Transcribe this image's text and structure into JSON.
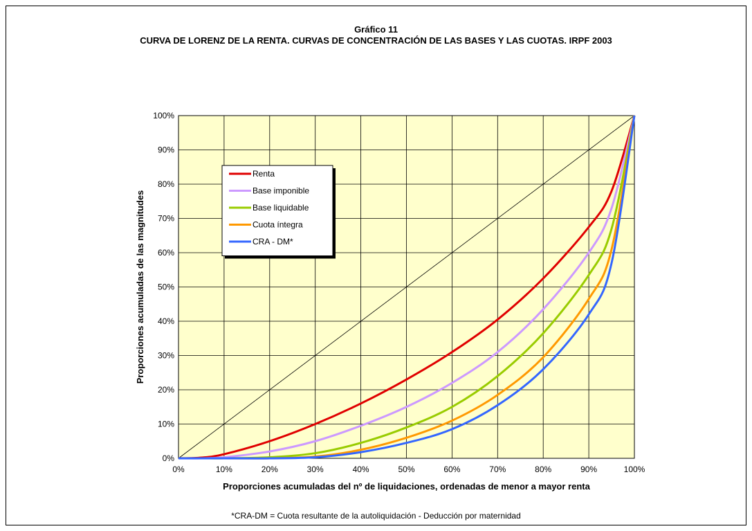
{
  "chart_data": {
    "type": "line",
    "title": "Gráfico 11",
    "subtitle": "CURVA DE LORENZ DE LA RENTA. CURVAS DE CONCENTRACIÓN DE LAS BASES Y LAS CUOTAS. IRPF 2003",
    "xlabel": "Proporciones acumuladas del nº de liquidaciones, ordenadas de menor a mayor renta",
    "ylabel": "Proporciones acumuladas de las magnitudes",
    "xlim": [
      0,
      100
    ],
    "ylim": [
      0,
      100
    ],
    "x_ticks": [
      "0%",
      "10%",
      "20%",
      "30%",
      "40%",
      "50%",
      "60%",
      "70%",
      "80%",
      "90%",
      "100%"
    ],
    "y_ticks": [
      "0%",
      "10%",
      "20%",
      "30%",
      "40%",
      "50%",
      "60%",
      "70%",
      "80%",
      "90%",
      "100%"
    ],
    "grid": true,
    "plot_background": "#FFFFCC",
    "legend_position": "top-left",
    "footnote": "*CRA-DM = Cuota resultante de la autoliquidación - Deducción por maternidad",
    "x": [
      0,
      5,
      10,
      20,
      30,
      40,
      50,
      60,
      70,
      80,
      90,
      95,
      100
    ],
    "series": [
      {
        "name": "Renta",
        "color": "#E00000",
        "values": [
          0,
          0.2,
          1.2,
          5,
          10,
          16,
          23,
          31,
          40.5,
          52.5,
          67.5,
          78,
          100
        ]
      },
      {
        "name": "Base imponible",
        "color": "#CC99FF",
        "values": [
          0,
          0,
          0.3,
          2,
          5,
          9.5,
          15,
          22,
          31,
          43.5,
          60,
          73,
          100
        ]
      },
      {
        "name": "Base liquidable",
        "color": "#99CC00",
        "values": [
          0,
          0,
          0,
          0.3,
          1.5,
          4.5,
          9,
          15,
          24,
          36.5,
          53.5,
          67,
          100
        ]
      },
      {
        "name": "Cuota íntegra",
        "color": "#FF9900",
        "values": [
          0,
          0,
          0,
          0,
          0.5,
          2.5,
          6,
          11,
          18.5,
          29.5,
          46.5,
          61,
          100
        ]
      },
      {
        "name": "CRA - DM*",
        "color": "#3366FF",
        "values": [
          0,
          0,
          0,
          0,
          0.3,
          1.8,
          4.5,
          8.5,
          15.5,
          26,
          42,
          57,
          100
        ]
      }
    ],
    "diagonal": {
      "values": [
        0,
        100
      ]
    }
  }
}
